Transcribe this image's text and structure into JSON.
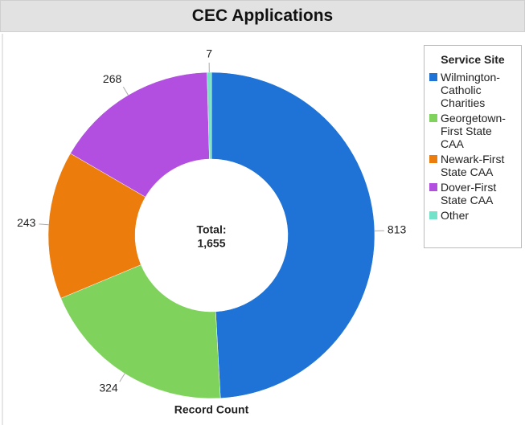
{
  "chart_data": {
    "type": "donut",
    "title": "CEC Applications",
    "categories": [
      "Wilmington-Catholic Charities",
      "Georgetown-First State CAA",
      "Newark-First State CAA",
      "Dover-First State CAA",
      "Other"
    ],
    "values": [
      813,
      324,
      243,
      268,
      7
    ],
    "colors": [
      "#1f73d6",
      "#7fd35c",
      "#ec7d0c",
      "#b24fe0",
      "#72e3c8"
    ],
    "legend_title": "Service Site",
    "legend": "right",
    "total_caption": "Total:",
    "total": {
      "value": 1655,
      "label": "1,655"
    },
    "x_label": "Record Count"
  }
}
